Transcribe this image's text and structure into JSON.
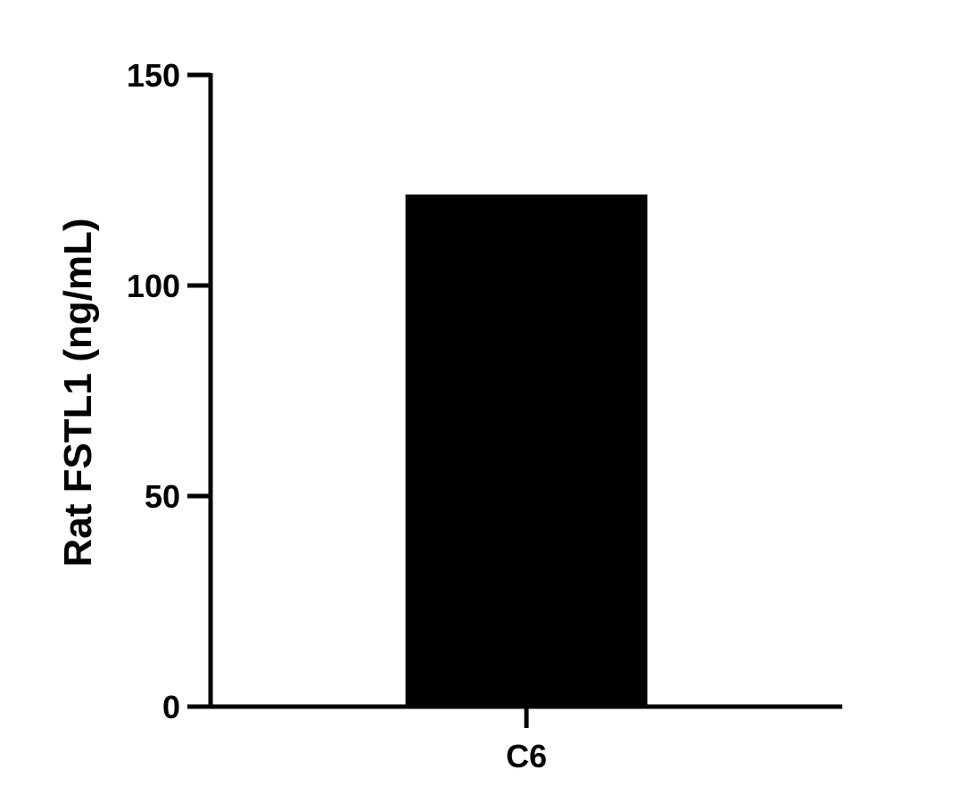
{
  "chart_data": {
    "type": "bar",
    "title": "",
    "xlabel": "",
    "ylabel": "Rat FSTL1 (ng/mL)",
    "categories": [
      "C6"
    ],
    "values": [
      121.6
    ],
    "ylim": [
      0,
      150
    ],
    "yticks": [
      0,
      50,
      100,
      150
    ],
    "ytick_labels": [
      "0",
      "50",
      "100",
      "150"
    ],
    "grid": false,
    "legend": "none",
    "bar_color": "#000000"
  }
}
